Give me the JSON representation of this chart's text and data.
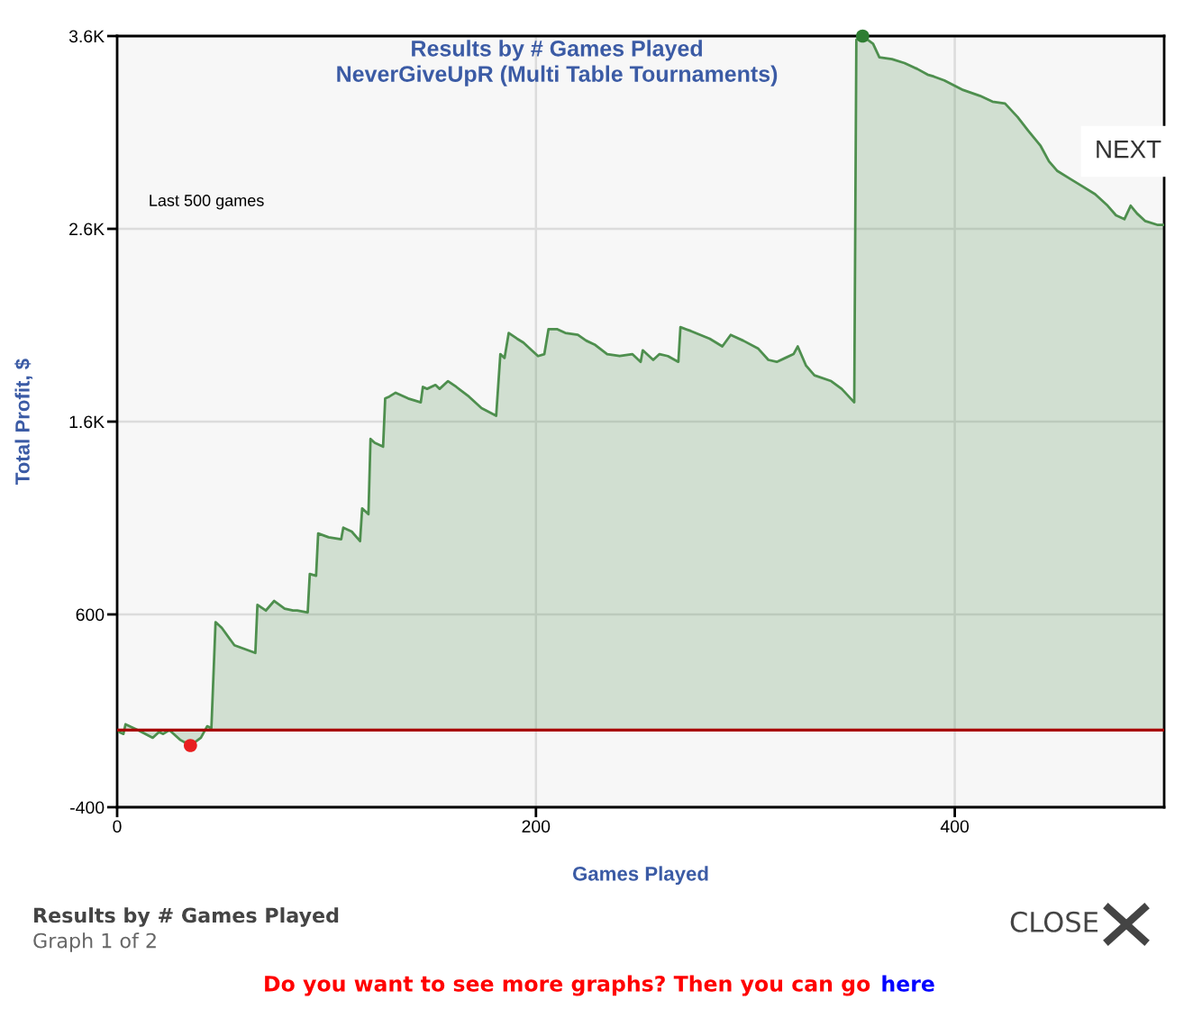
{
  "chart_data": {
    "type": "area",
    "title": "Results by # Games Played",
    "subtitle": "NeverGiveUpR (Multi Table Tournaments)",
    "xlabel": "Games Played",
    "ylabel": "Total Profit, $",
    "xlim": [
      0,
      500
    ],
    "xticks": [
      0,
      200,
      400
    ],
    "ylim": [
      -400,
      3600
    ],
    "yticks": [
      {
        "value": 3600,
        "label": "3.6K"
      },
      {
        "value": 2600,
        "label": "2.6K"
      },
      {
        "value": 1600,
        "label": "1.6K"
      },
      600,
      -400
    ],
    "grid": true,
    "ref_lines": [
      {
        "axis": "y",
        "value": 0,
        "color": "#a80000"
      }
    ],
    "series": [
      {
        "color": "#4e8f4e",
        "x": [
          1,
          3,
          4,
          10,
          17,
          20,
          22,
          25,
          30,
          35,
          40,
          43,
          45,
          47,
          50,
          56,
          61,
          66,
          67,
          71,
          75,
          80,
          84,
          86,
          91,
          92,
          95,
          96,
          101,
          107,
          108,
          112,
          116,
          117,
          120,
          121,
          123,
          127,
          128,
          130,
          133,
          139,
          145,
          146,
          148,
          152,
          154,
          158,
          162,
          168,
          174,
          181,
          183,
          185,
          187,
          191,
          194,
          197,
          201,
          204,
          206,
          210,
          214,
          220,
          224,
          228,
          234,
          240,
          246,
          250,
          251,
          256,
          259,
          263,
          268,
          269,
          274,
          283,
          289,
          293,
          299,
          306,
          311,
          315,
          319,
          323,
          325,
          329,
          333,
          341,
          346,
          352,
          353,
          356,
          361,
          364,
          370,
          376,
          382,
          387,
          390,
          395,
          404,
          412,
          418,
          424,
          430,
          435,
          441,
          445,
          449,
          455,
          461,
          467,
          473,
          477,
          481,
          484,
          487,
          491,
          497,
          500
        ],
        "values": [
          -10,
          -20,
          30,
          0,
          -40,
          -10,
          -20,
          0,
          -50,
          -80,
          -40,
          20,
          10,
          560,
          530,
          440,
          420,
          400,
          650,
          620,
          670,
          630,
          620,
          620,
          610,
          810,
          800,
          1020,
          1000,
          990,
          1050,
          1030,
          980,
          1150,
          1120,
          1510,
          1490,
          1470,
          1720,
          1730,
          1750,
          1720,
          1700,
          1780,
          1770,
          1790,
          1770,
          1810,
          1780,
          1730,
          1670,
          1630,
          1950,
          1930,
          2060,
          2030,
          2010,
          1980,
          1940,
          1950,
          2080,
          2080,
          2060,
          2050,
          2020,
          2000,
          1950,
          1940,
          1950,
          1910,
          1970,
          1920,
          1950,
          1940,
          1910,
          2090,
          2070,
          2030,
          1990,
          2050,
          2020,
          1980,
          1920,
          1910,
          1930,
          1950,
          1990,
          1890,
          1840,
          1810,
          1770,
          1700,
          3580,
          3600,
          3560,
          3490,
          3480,
          3460,
          3430,
          3400,
          3390,
          3370,
          3320,
          3290,
          3260,
          3250,
          3180,
          3110,
          3030,
          2950,
          2900,
          2860,
          2820,
          2780,
          2720,
          2670,
          2650,
          2720,
          2680,
          2640,
          2620,
          2620
        ]
      },
      {
        "type": "scatter",
        "x": [
          35,
          356
        ],
        "values": [
          -80,
          3600
        ],
        "colors": [
          "#e82020",
          "#2e7d32"
        ]
      }
    ],
    "annotations": [
      "Last 500 games",
      "NEXT",
      "Results by # Games Played",
      "Graph 1 of 2",
      "CLOSE",
      "Do you want to see more graphs? Then you can go",
      "here"
    ]
  }
}
